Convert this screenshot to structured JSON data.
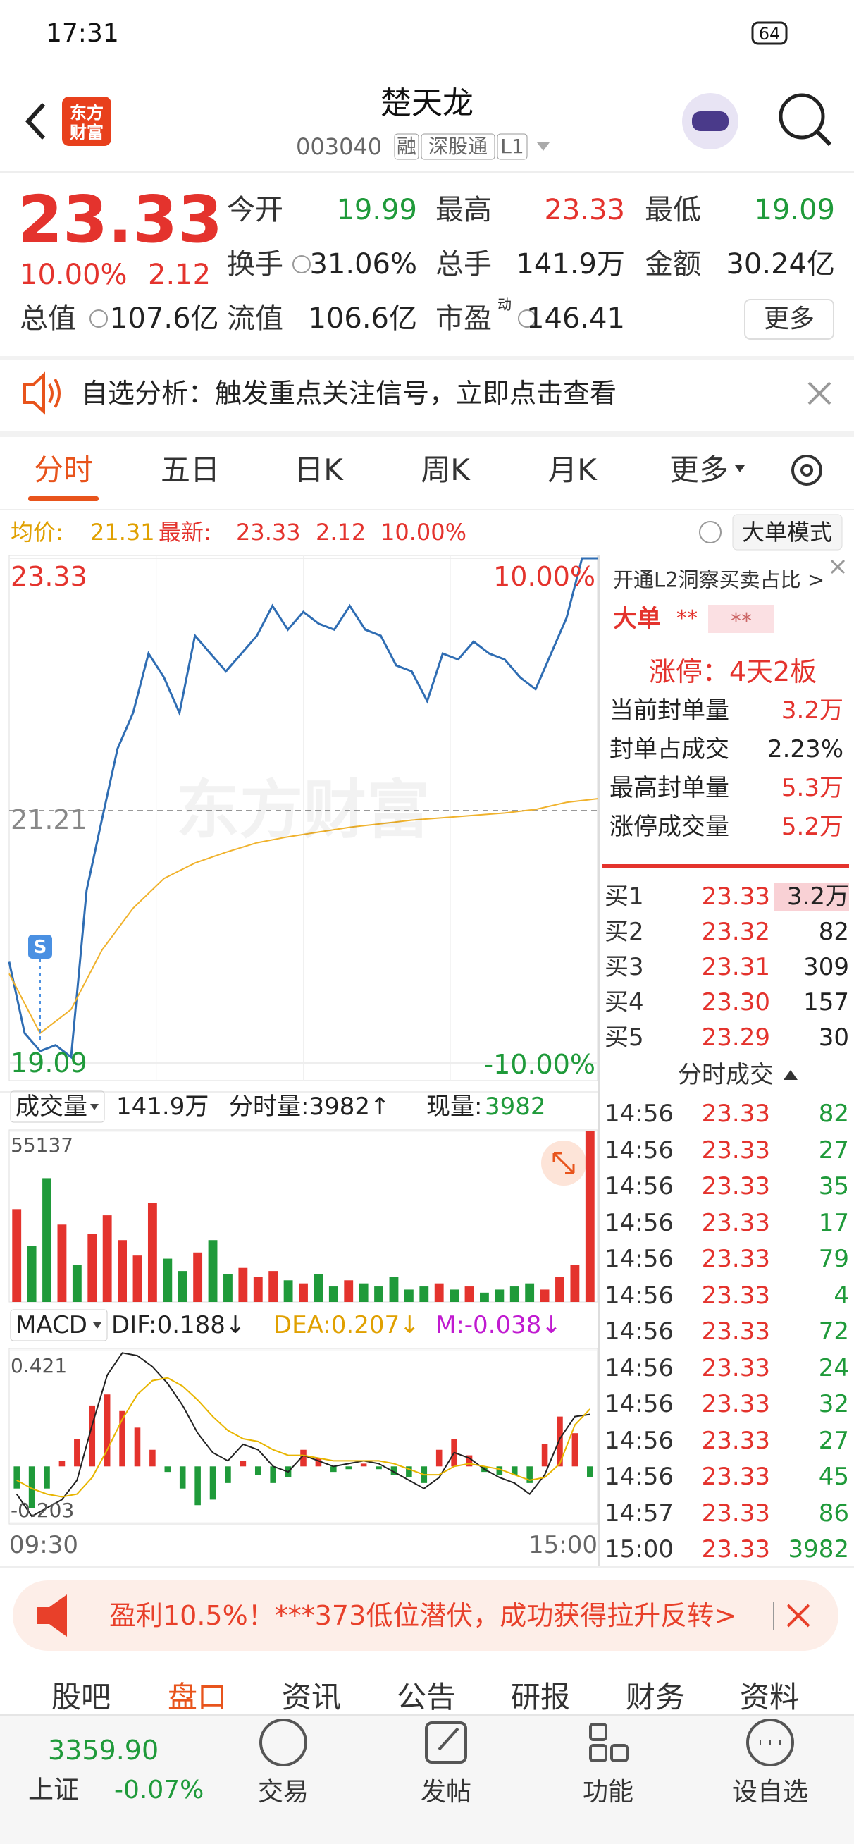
{
  "status_bar": {
    "time": "17:31",
    "battery": "64"
  },
  "header": {
    "title": "楚天龙",
    "code": "003040",
    "tags": [
      "融",
      "深股通",
      "L1"
    ],
    "logo": [
      "东方",
      "财富"
    ]
  },
  "quote": {
    "price": "23.33",
    "change_pct": "10.00%",
    "change": "2.12",
    "fields": [
      {
        "label": "今开",
        "value": "19.99"
      },
      {
        "label": "最高",
        "value": "23.33"
      },
      {
        "label": "最低",
        "value": "19.09"
      },
      {
        "label": "换手",
        "value": "31.06%"
      },
      {
        "label": "总手",
        "value": "141.9万"
      },
      {
        "label": "金额",
        "value": "30.24亿"
      },
      {
        "label": "流值",
        "value": "106.6亿"
      },
      {
        "label": "市盈",
        "value": "146.41"
      }
    ],
    "pe_sup": "动",
    "total_label": "总值",
    "total_value": "107.6亿",
    "more": "更多"
  },
  "notice": {
    "text": "自选分析：触发重点关注信号，立即点击查看"
  },
  "tabs": [
    "分时",
    "五日",
    "日K",
    "周K",
    "月K",
    "更多"
  ],
  "chart_info": {
    "avg_label": "均价:",
    "avg": "21.31",
    "last_label": "最新:",
    "last": "23.33",
    "change": "2.12",
    "pct": "10.00%",
    "mode": "大单模式"
  },
  "price_chart": {
    "type": "line",
    "ylim": [
      19.09,
      23.33
    ],
    "yticks": [
      19.09,
      21.21,
      23.33
    ],
    "pct_top": "10.00%",
    "pct_bottom": "-10.00%",
    "watermark": "东方财富",
    "marker": "S",
    "series": [
      {
        "color": "#2f6db3",
        "values": [
          19.94,
          19.34,
          19.19,
          19.24,
          19.14,
          20.54,
          21.14,
          21.73,
          22.03,
          22.53,
          22.33,
          22.03,
          22.68,
          22.53,
          22.38,
          22.53,
          22.68,
          22.93,
          22.73,
          22.88,
          22.78,
          22.73,
          22.93,
          22.73,
          22.68,
          22.43,
          22.38,
          22.13,
          22.53,
          22.48,
          22.63,
          22.53,
          22.48,
          22.33,
          22.23,
          22.53,
          22.83,
          23.33,
          23.33
        ]
      },
      {
        "color": "#f0b22c",
        "values": [
          19.84,
          19.34,
          19.54,
          20.04,
          20.39,
          20.64,
          20.77,
          20.86,
          20.94,
          20.99,
          21.03,
          21.07,
          21.1,
          21.13,
          21.15,
          21.17,
          21.19,
          21.22,
          21.28,
          21.31
        ]
      }
    ]
  },
  "volume_info": {
    "label": "成交量",
    "total": "141.9万",
    "minute": "分时量:3982↑",
    "now_label": "现量:",
    "now": "3982"
  },
  "volume_chart": {
    "type": "bar",
    "ylim": [
      0,
      55137
    ],
    "yticks": [
      55137
    ],
    "up_color": "#e4332d",
    "down_color": "#1f9a3a",
    "values": [
      30000,
      18000,
      40000,
      25000,
      12000,
      22000,
      28000,
      20000,
      15000,
      32000,
      14000,
      10000,
      16000,
      20000,
      9000,
      11000,
      8000,
      10000,
      7000,
      6000,
      9000,
      5000,
      7000,
      6000,
      5000,
      8000,
      4000,
      5000,
      6000,
      4000,
      5000,
      3000,
      4000,
      5000,
      6000,
      4000,
      8000,
      12000,
      55137
    ]
  },
  "macd_info": {
    "label": "MACD",
    "dif": "DIF:0.188↓",
    "dea": "DEA:0.207↓",
    "m": "M:-0.038↓"
  },
  "macd_chart": {
    "type": "macd",
    "ylim": [
      -0.203,
      0.421
    ],
    "yticks": [
      -0.203,
      0.421
    ],
    "dif_color": "#222222",
    "dea_color": "#e8b500",
    "hist": [
      -0.08,
      -0.15,
      -0.08,
      0.02,
      0.1,
      0.22,
      0.26,
      0.2,
      0.14,
      0.06,
      -0.02,
      -0.08,
      -0.14,
      -0.12,
      -0.06,
      0.02,
      -0.03,
      -0.06,
      -0.04,
      0.06,
      0.03,
      -0.02,
      -0.01,
      0.01,
      -0.01,
      -0.03,
      -0.04,
      -0.06,
      0.06,
      0.1,
      0.04,
      -0.02,
      -0.03,
      -0.03,
      -0.06,
      0.08,
      0.18,
      0.12,
      -0.038
    ],
    "dif": [
      -0.1,
      -0.18,
      -0.15,
      -0.12,
      -0.05,
      0.15,
      0.33,
      0.41,
      0.4,
      0.36,
      0.3,
      0.22,
      0.12,
      0.05,
      0.02,
      0.08,
      0.06,
      0,
      -0.02,
      0.04,
      0.02,
      0,
      0.01,
      0.02,
      0.01,
      -0.02,
      -0.05,
      -0.08,
      -0.04,
      0.05,
      0.03,
      -0.01,
      -0.04,
      -0.06,
      -0.1,
      -0.03,
      0.1,
      0.18,
      0.188
    ],
    "dea": [
      -0.05,
      -0.08,
      -0.1,
      -0.11,
      -0.1,
      -0.04,
      0.06,
      0.17,
      0.26,
      0.31,
      0.32,
      0.29,
      0.24,
      0.18,
      0.13,
      0.1,
      0.09,
      0.06,
      0.04,
      0.04,
      0.03,
      0.02,
      0.02,
      0.02,
      0.02,
      0.01,
      -0.01,
      -0.03,
      -0.03,
      0,
      0.01,
      0,
      -0.01,
      -0.03,
      -0.05,
      -0.04,
      0.01,
      0.15,
      0.207
    ]
  },
  "time_axis": [
    "09:30",
    "15:00"
  ],
  "side": {
    "l2": "开通L2洞察买卖占比 >",
    "big": "大单",
    "big_values": [
      "**",
      "**"
    ],
    "limit": "涨停：4天2板",
    "stats": [
      {
        "label": "当前封单量",
        "value": "3.2万"
      },
      {
        "label": "封单占成交",
        "value": "2.23%"
      },
      {
        "label": "最高封单量",
        "value": "5.3万"
      },
      {
        "label": "涨停成交量",
        "value": "5.2万"
      }
    ],
    "bids": [
      [
        "买1",
        "23.33",
        "3.2万"
      ],
      [
        "买2",
        "23.32",
        "82"
      ],
      [
        "买3",
        "23.31",
        "309"
      ],
      [
        "买4",
        "23.30",
        "157"
      ],
      [
        "买5",
        "23.29",
        "30"
      ]
    ],
    "trades_title": "分时成交",
    "trades": [
      [
        "14:56",
        "23.33",
        "82"
      ],
      [
        "14:56",
        "23.33",
        "27"
      ],
      [
        "14:56",
        "23.33",
        "35"
      ],
      [
        "14:56",
        "23.33",
        "17"
      ],
      [
        "14:56",
        "23.33",
        "79"
      ],
      [
        "14:56",
        "23.33",
        "4"
      ],
      [
        "14:56",
        "23.33",
        "72"
      ],
      [
        "14:56",
        "23.33",
        "24"
      ],
      [
        "14:56",
        "23.33",
        "32"
      ],
      [
        "14:56",
        "23.33",
        "27"
      ],
      [
        "14:56",
        "23.33",
        "45"
      ],
      [
        "14:57",
        "23.33",
        "86"
      ],
      [
        "15:00",
        "23.33",
        "3982"
      ]
    ]
  },
  "ad": {
    "text": "盈利10.5%！***373低位潜伏，成功获得拉升反转>"
  },
  "bottom_tabs": [
    "股吧",
    "盘口",
    "资讯",
    "公告",
    "研报",
    "财务",
    "资料"
  ],
  "bottom_nav": {
    "index_value": "3359.90",
    "index_name": "上证",
    "index_change": "-0.07%",
    "items": [
      "交易",
      "发帖",
      "功能",
      "设自选"
    ]
  }
}
